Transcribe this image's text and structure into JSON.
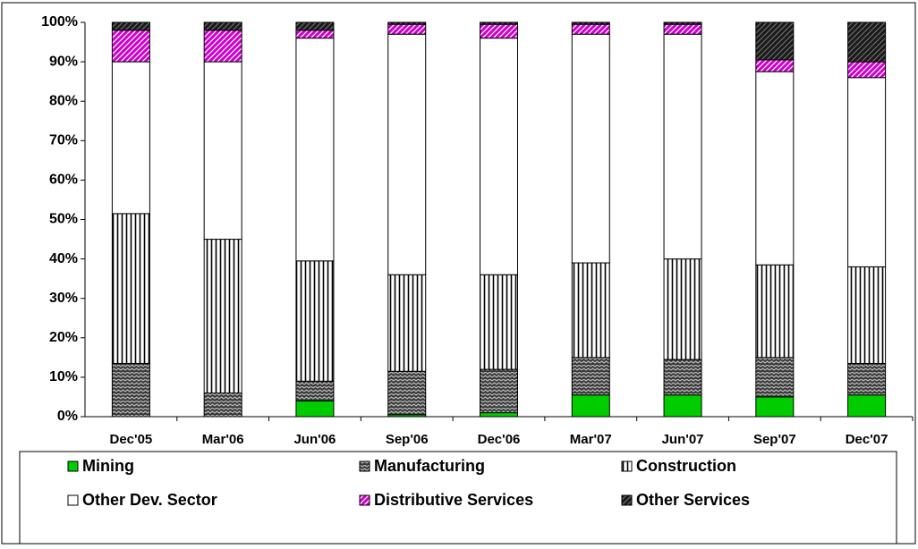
{
  "chart_data": {
    "type": "stacked_bar_100",
    "categories": [
      "Dec'05",
      "Mar'06",
      "Jun'06",
      "Sep'06",
      "Dec'06",
      "Mar'07",
      "Jun'07",
      "Sep'07",
      "Dec'07"
    ],
    "series": [
      {
        "name": "Mining",
        "color": "#00cc00",
        "values": [
          0,
          0,
          4,
          0.5,
          1,
          5.5,
          5.5,
          5,
          5.5
        ]
      },
      {
        "name": "Manufacturing",
        "color": "#3a3a3a",
        "values": [
          13.5,
          6,
          5,
          11,
          11,
          9.5,
          9,
          10,
          8
        ]
      },
      {
        "name": "Construction",
        "color": "#ffffff",
        "values": [
          38,
          39,
          30.5,
          24.5,
          24,
          24,
          25.5,
          23.5,
          24.5
        ]
      },
      {
        "name": "Other Dev. Sector",
        "color": "#ffffff",
        "values": [
          38.5,
          45,
          56.5,
          61,
          60,
          58,
          57,
          49,
          48
        ]
      },
      {
        "name": "Distributive Services",
        "color": "#cc00cc",
        "values": [
          8,
          8,
          2,
          2.5,
          3.5,
          2.5,
          2.5,
          3,
          4
        ]
      },
      {
        "name": "Other Services",
        "color": "#1a1a1a",
        "values": [
          2,
          2,
          2,
          0.5,
          0.5,
          0.5,
          0.5,
          9.5,
          10
        ]
      }
    ],
    "ylim": [
      0,
      100
    ],
    "yticks": [
      {
        "value": 0,
        "label": "0%"
      },
      {
        "value": 10,
        "label": "10%"
      },
      {
        "value": 20,
        "label": "20%"
      },
      {
        "value": 30,
        "label": "30%"
      },
      {
        "value": 40,
        "label": "40%"
      },
      {
        "value": 50,
        "label": "50%"
      },
      {
        "value": 60,
        "label": "60%"
      },
      {
        "value": 70,
        "label": "70%"
      },
      {
        "value": 80,
        "label": "80%"
      },
      {
        "value": 90,
        "label": "90%"
      },
      {
        "value": 100,
        "label": "100%"
      }
    ],
    "grid": false,
    "legend": "bottom"
  }
}
